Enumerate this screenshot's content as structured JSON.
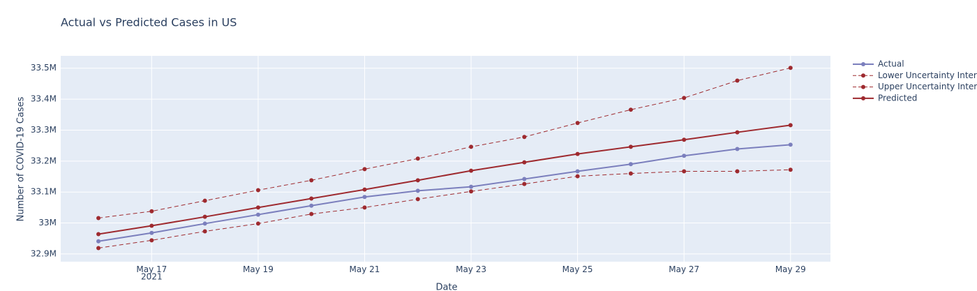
{
  "chart_data": {
    "type": "line",
    "title": "Actual vs Predicted Cases in US",
    "x_label": "Date",
    "y_label": "Number of COVID-19 Cases",
    "x": [
      "2021-05-16",
      "2021-05-17",
      "2021-05-18",
      "2021-05-19",
      "2021-05-20",
      "2021-05-21",
      "2021-05-22",
      "2021-05-23",
      "2021-05-24",
      "2021-05-25",
      "2021-05-26",
      "2021-05-27",
      "2021-05-28",
      "2021-05-29"
    ],
    "series": [
      {
        "name": "Actual",
        "color": "#7b7fbd",
        "dash": false,
        "values": [
          32941000,
          32968000,
          32998000,
          33027000,
          33056000,
          33084000,
          33104000,
          33117000,
          33142000,
          33167000,
          33190000,
          33217000,
          33239000,
          33253000
        ]
      },
      {
        "name": "Lower Uncertainty Interval",
        "color": "#9e2a2f",
        "dash": true,
        "values": [
          32919000,
          32944000,
          32973000,
          32998000,
          33029000,
          33050000,
          33077000,
          33102000,
          33126000,
          33151000,
          33160000,
          33167000,
          33167000,
          33172000
        ]
      },
      {
        "name": "Upper Uncertainty Interval",
        "color": "#9e2a2f",
        "dash": true,
        "values": [
          33016000,
          33038000,
          33072000,
          33106000,
          33138000,
          33174000,
          33208000,
          33246000,
          33278000,
          33323000,
          33366000,
          33404000,
          33460000,
          33501000
        ]
      },
      {
        "name": "Predicted",
        "color": "#9e2a2f",
        "dash": false,
        "values": [
          32964000,
          32991000,
          33020000,
          33050000,
          33079000,
          33108000,
          33138000,
          33169000,
          33196000,
          33223000,
          33246000,
          33269000,
          33293000,
          33316000
        ]
      }
    ],
    "xlim": [
      "2021-05-15T07:00:00Z",
      "2021-05-29T18:00:00Z"
    ],
    "xticks": [
      {
        "value": "2021-05-17",
        "label": "May 17"
      },
      {
        "value": "2021-05-19",
        "label": "May 19"
      },
      {
        "value": "2021-05-21",
        "label": "May 21"
      },
      {
        "value": "2021-05-23",
        "label": "May 23"
      },
      {
        "value": "2021-05-25",
        "label": "May 25"
      },
      {
        "value": "2021-05-27",
        "label": "May 27"
      },
      {
        "value": "2021-05-29",
        "label": "May 29"
      }
    ],
    "x_year": "2021",
    "ylim": [
      32875000,
      33540000
    ],
    "yticks": [
      {
        "value": 32900000,
        "label": "32.9M"
      },
      {
        "value": 33000000,
        "label": "33M"
      },
      {
        "value": 33100000,
        "label": "33.1M"
      },
      {
        "value": 33200000,
        "label": "33.2M"
      },
      {
        "value": 33300000,
        "label": "33.3M"
      },
      {
        "value": 33400000,
        "label": "33.4M"
      },
      {
        "value": 33500000,
        "label": "33.5M"
      }
    ],
    "grid": true
  }
}
